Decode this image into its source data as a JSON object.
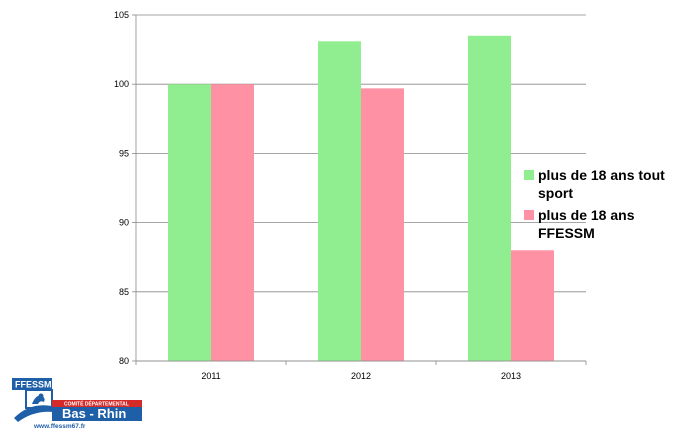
{
  "chart_data": {
    "type": "bar",
    "categories": [
      "2011",
      "2012",
      "2013"
    ],
    "series": [
      {
        "name": "plus de 18 ans tout sport",
        "values": [
          100,
          103.1,
          103.5
        ],
        "color": "#90EE90"
      },
      {
        "name": "plus de 18 ans FFESSM",
        "values": [
          100,
          99.7,
          88.0
        ],
        "color": "#FF91A4"
      }
    ],
    "ylim": [
      80,
      105
    ],
    "yticks": [
      "80",
      "85",
      "90",
      "95",
      "100",
      "105"
    ],
    "grid": true,
    "legend_position": "right",
    "title": "",
    "xlabel": "",
    "ylabel": ""
  },
  "logo": {
    "top_text": "FFESSM",
    "middle_text": "COMITÉ DÉPARTEMENTAL",
    "main_text": "Bas - Rhin",
    "url_text": "www.ffessm67.fr",
    "colors": {
      "blue": "#1f5fa8",
      "red": "#d42a2a",
      "white": "#ffffff"
    }
  }
}
